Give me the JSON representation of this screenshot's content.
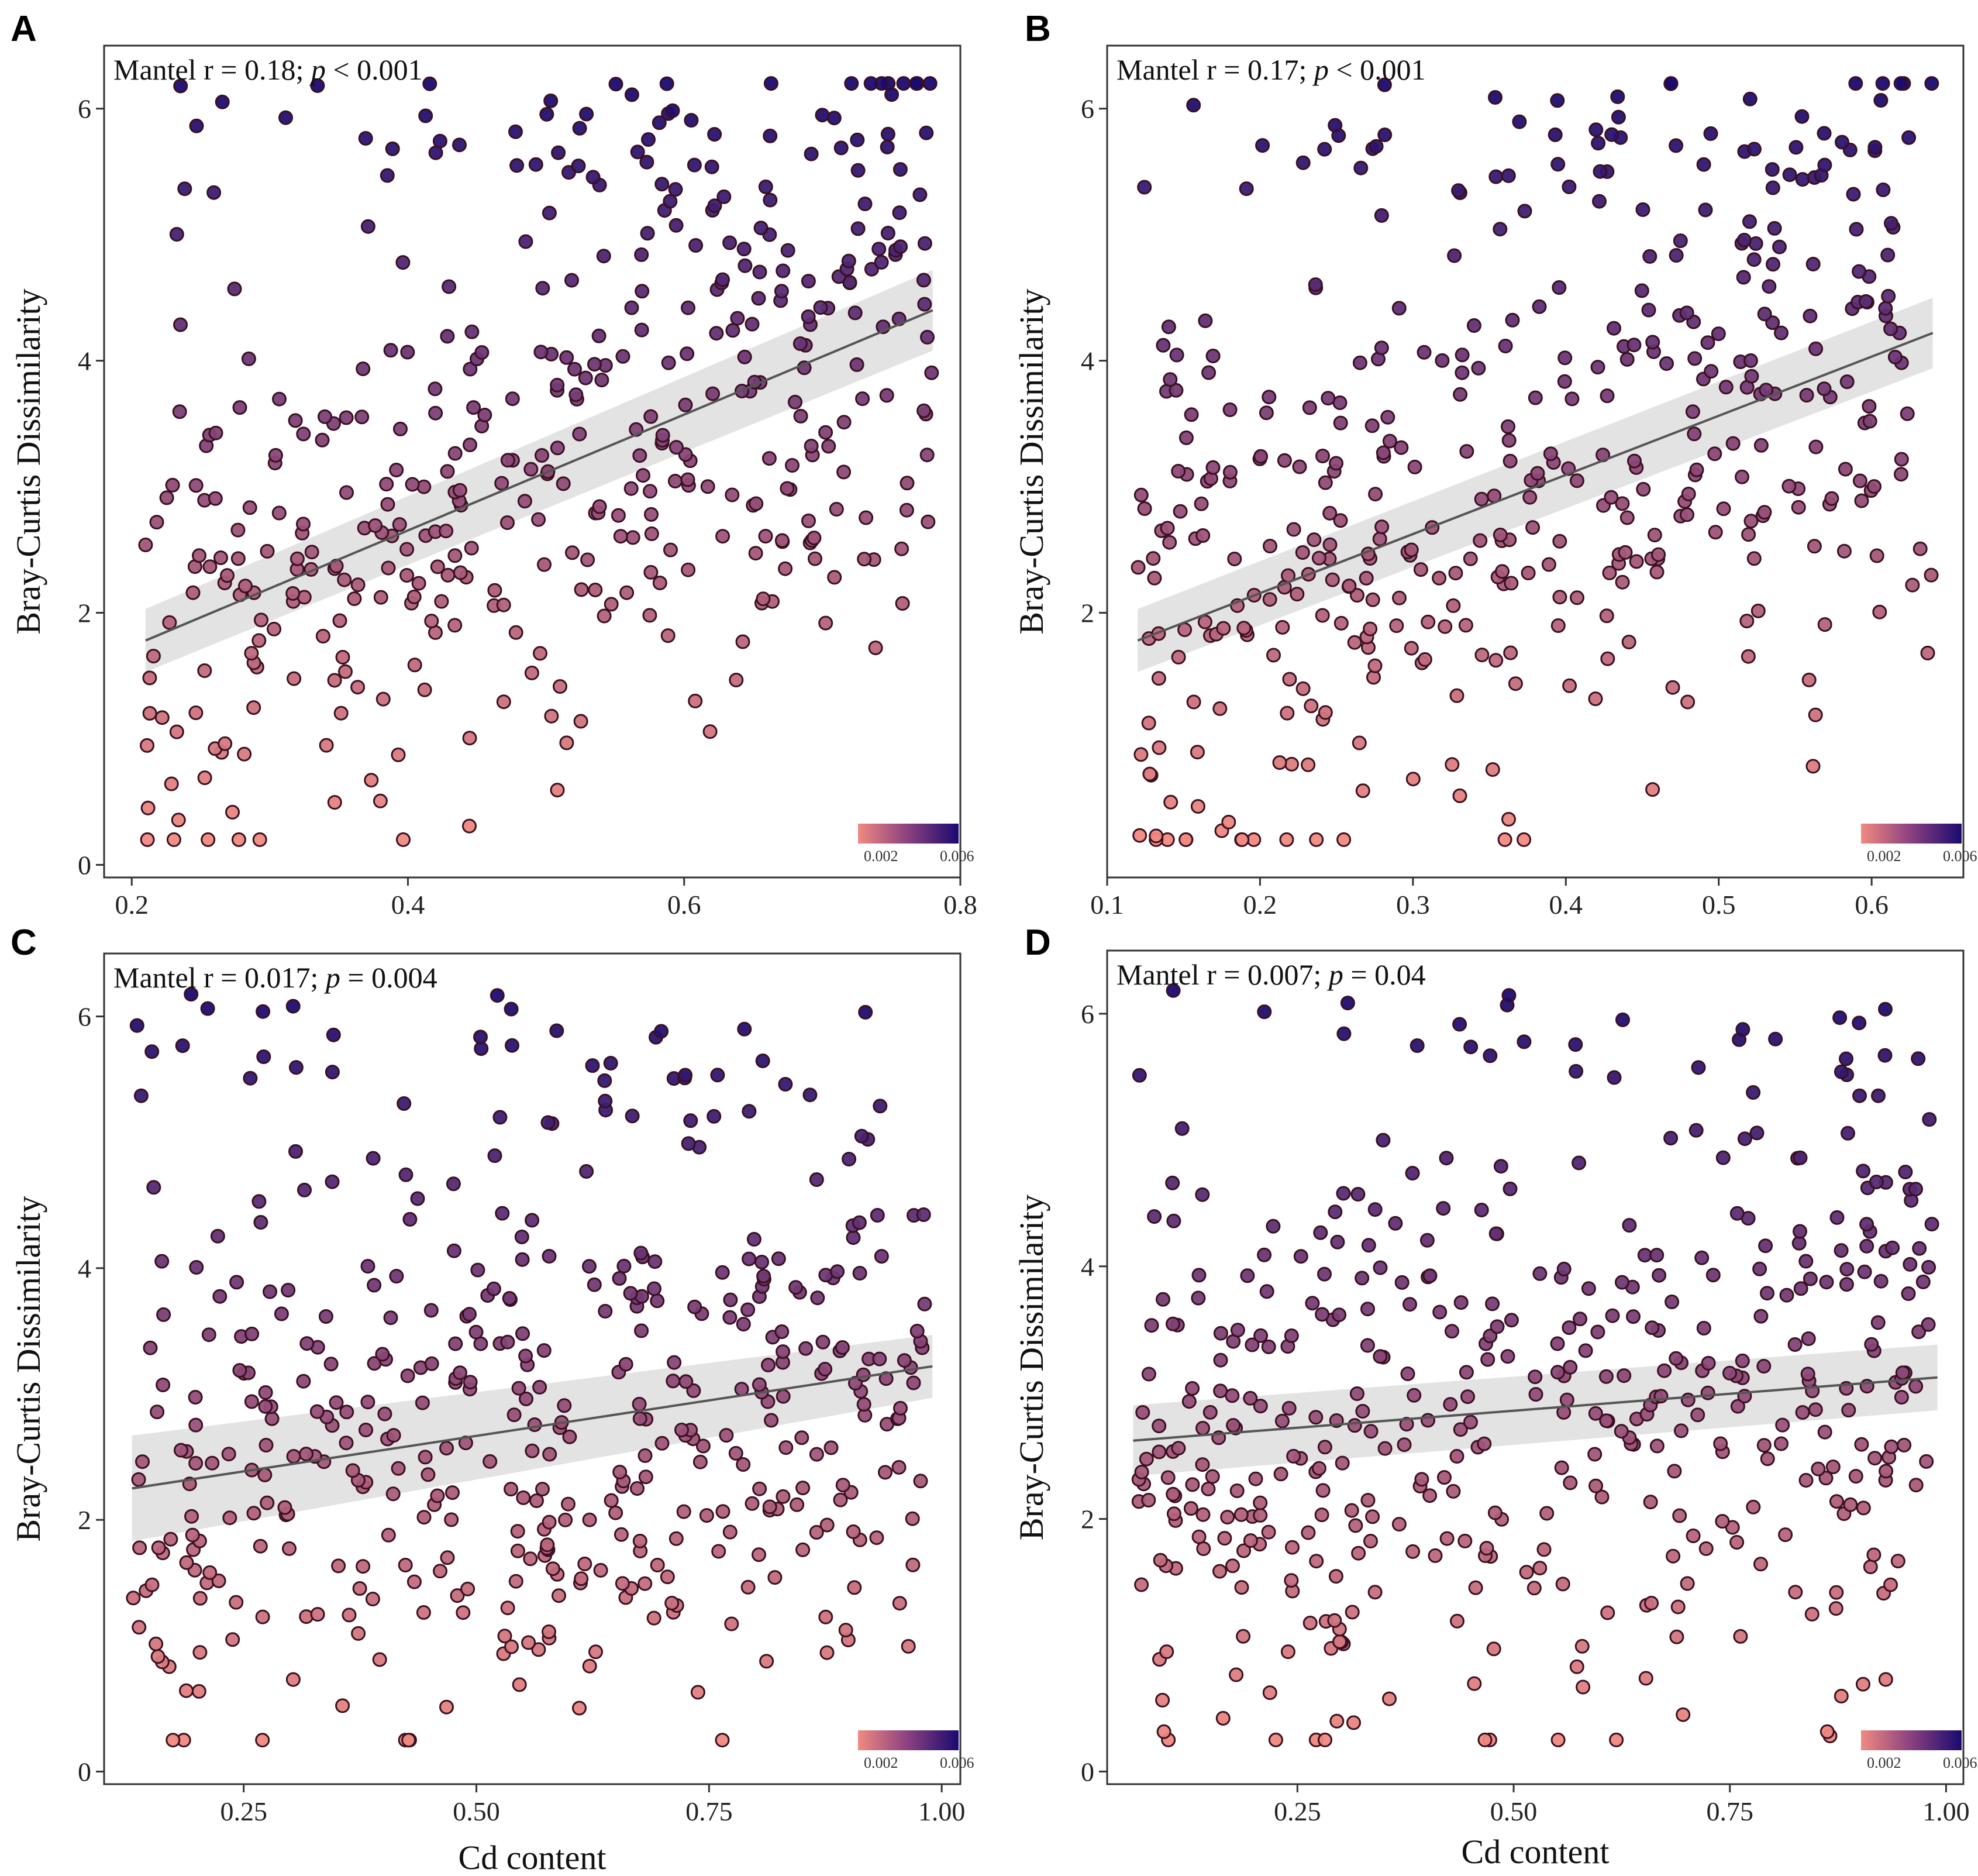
{
  "figure": {
    "x_label": "Cd content",
    "y_label": "Bray-Curtis Dissimilarity"
  },
  "colors": {
    "low": "#f08a80",
    "high": "#1a0a70",
    "ci_band": "#d9d9d9",
    "fit_line": "#555555"
  },
  "chart_data": [
    {
      "panel": "A",
      "type": "scatter",
      "annotation_prefix": "Mantel r = 0.18; ",
      "annotation_p": "p",
      "annotation_suffix": " < 0.001",
      "xlim": [
        0.18,
        0.8
      ],
      "ylim": [
        -0.1,
        6.5
      ],
      "xticks": [
        0.2,
        0.4,
        0.6,
        0.8
      ],
      "xtick_labels": [
        "0.2",
        "0.4",
        "0.6",
        "0.8"
      ],
      "yticks": [
        0,
        2,
        4,
        6
      ],
      "ytick_labels": [
        "0",
        "2",
        "4",
        "6"
      ],
      "xlabel": "",
      "ylabel": "Bray-Curtis Dissimilarity",
      "fit": {
        "x": [
          0.21,
          0.78
        ],
        "y": [
          1.78,
          4.4
        ],
        "ci": [
          0.25,
          0.32
        ]
      },
      "colorbar": {
        "low_label": "0.002",
        "high_label": "0.006",
        "min": 0.002,
        "max": 0.006
      },
      "n_points": 430,
      "x_range": [
        0.21,
        0.78
      ],
      "y_range": [
        0.2,
        6.2
      ],
      "seed": 11
    },
    {
      "panel": "B",
      "type": "scatter",
      "annotation_prefix": "Mantel r = 0.17; ",
      "annotation_p": "p",
      "annotation_suffix": " < 0.001",
      "xlim": [
        0.1,
        0.66
      ],
      "ylim": [
        -0.1,
        6.5
      ],
      "xticks": [
        0.1,
        0.2,
        0.3,
        0.4,
        0.5,
        0.6
      ],
      "xtick_labels": [
        "0.1",
        "0.2",
        "0.3",
        "0.4",
        "0.5",
        "0.6"
      ],
      "yticks": [
        2,
        4,
        6
      ],
      "ytick_labels": [
        "2",
        "4",
        "6"
      ],
      "xlabel": "",
      "ylabel": "Bray-Curtis Dissimilarity",
      "fit": {
        "x": [
          0.12,
          0.64
        ],
        "y": [
          1.78,
          4.22
        ],
        "ci": [
          0.25,
          0.28
        ]
      },
      "colorbar": {
        "low_label": "0.002",
        "high_label": "0.006",
        "min": 0.002,
        "max": 0.006
      },
      "n_points": 430,
      "x_range": [
        0.12,
        0.64
      ],
      "y_range": [
        0.2,
        6.2
      ],
      "seed": 23
    },
    {
      "panel": "C",
      "type": "scatter",
      "annotation_prefix": "Mantel r = 0.017; ",
      "annotation_p": "p",
      "annotation_suffix": " = 0.004",
      "xlim": [
        0.1,
        1.02
      ],
      "ylim": [
        -0.1,
        6.5
      ],
      "xticks": [
        0.25,
        0.5,
        0.75,
        1.0
      ],
      "xtick_labels": [
        "0.25",
        "0.50",
        "0.75",
        "1.00"
      ],
      "yticks": [
        0,
        2,
        4,
        6
      ],
      "ytick_labels": [
        "0",
        "2",
        "4",
        "6"
      ],
      "xlabel": "Cd content",
      "ylabel": "Bray-Curtis Dissimilarity",
      "fit": {
        "x": [
          0.13,
          0.99
        ],
        "y": [
          2.25,
          3.22
        ],
        "ci": [
          0.42,
          0.25
        ]
      },
      "colorbar": {
        "low_label": "0.002",
        "high_label": "0.006",
        "min": 0.002,
        "max": 0.006
      },
      "n_points": 450,
      "x_range": [
        0.13,
        0.99
      ],
      "y_range": [
        0.25,
        6.2
      ],
      "seed": 37
    },
    {
      "panel": "D",
      "type": "scatter",
      "annotation_prefix": "Mantel r = 0.007; ",
      "annotation_p": "p",
      "annotation_suffix": " = 0.04",
      "xlim": [
        0.03,
        1.02
      ],
      "ylim": [
        -0.1,
        6.5
      ],
      "xticks": [
        0.25,
        0.5,
        0.75,
        1.0
      ],
      "xtick_labels": [
        "0.25",
        "0.50",
        "0.75",
        "1.00"
      ],
      "yticks": [
        0,
        2,
        4,
        6
      ],
      "ytick_labels": [
        "0",
        "2",
        "4",
        "6"
      ],
      "xlabel": "Cd content",
      "ylabel": "Bray-Curtis Dissimilarity",
      "fit": {
        "x": [
          0.06,
          0.99
        ],
        "y": [
          2.62,
          3.12
        ],
        "ci": [
          0.28,
          0.26
        ]
      },
      "colorbar": {
        "low_label": "0.002",
        "high_label": "0.006",
        "min": 0.002,
        "max": 0.006
      },
      "n_points": 450,
      "x_range": [
        0.06,
        0.99
      ],
      "y_range": [
        0.25,
        6.2
      ],
      "seed": 53
    }
  ]
}
